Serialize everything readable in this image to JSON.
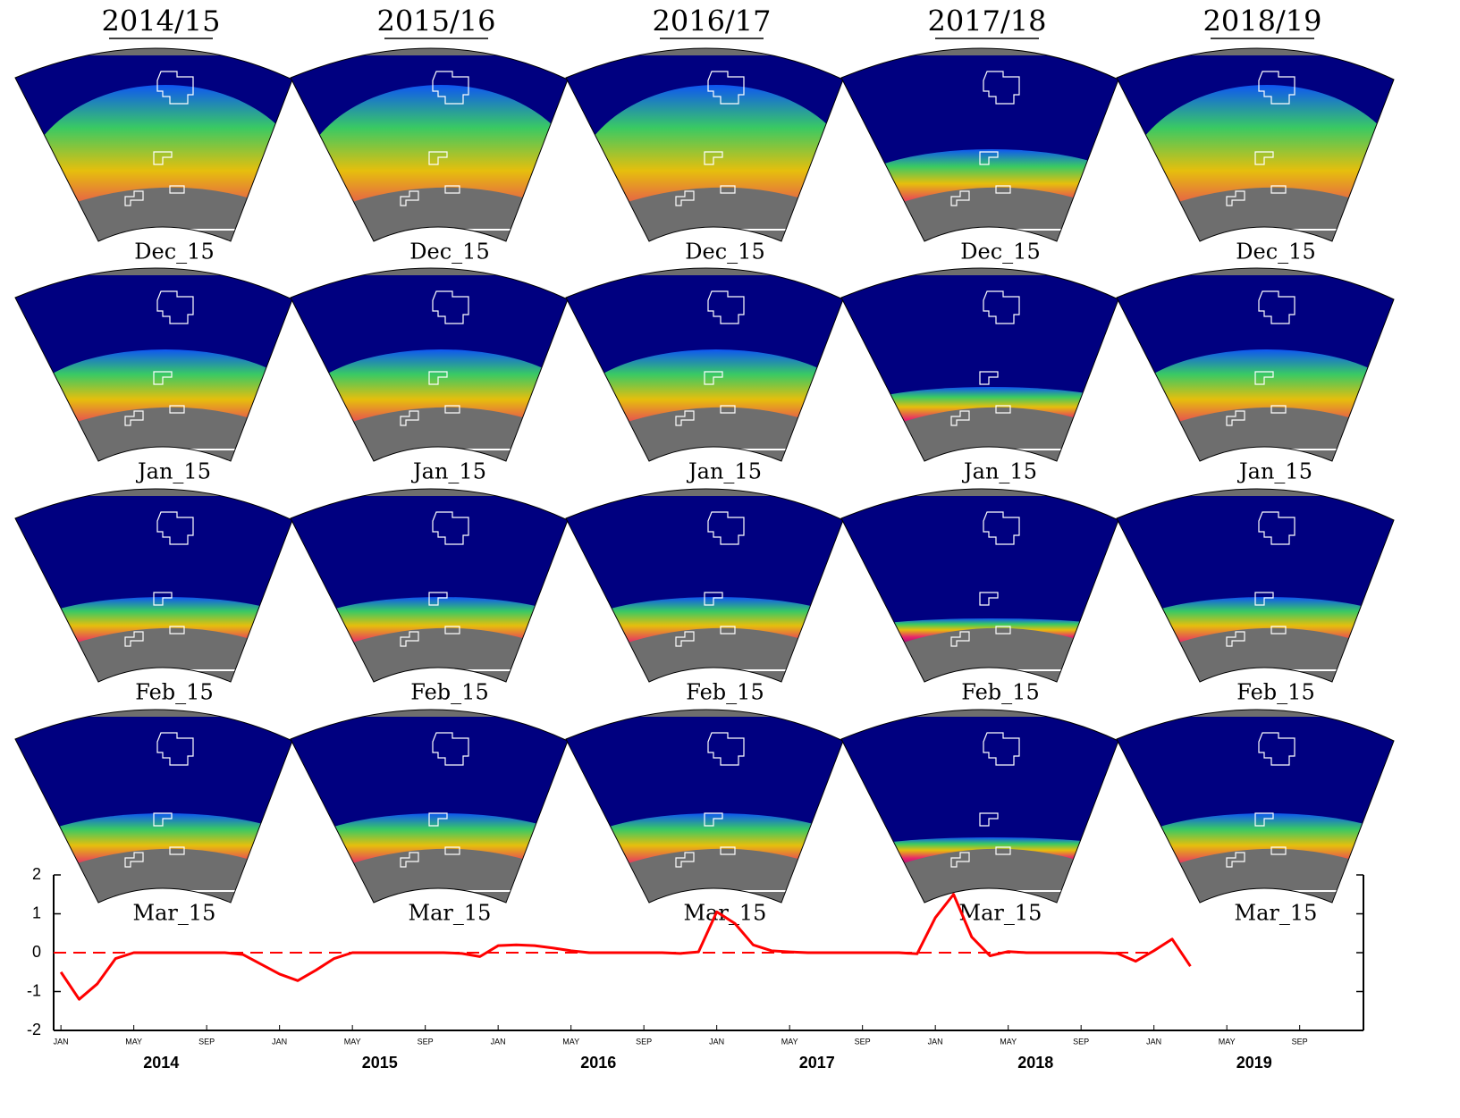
{
  "maps": {
    "column_titles": [
      "2014/15",
      "2015/16",
      "2016/17",
      "2017/18",
      "2018/19"
    ],
    "row_labels": [
      "Dec_15",
      "Jan_15",
      "Feb_15",
      "Mar_15"
    ]
  },
  "chart_data": {
    "type": "line",
    "x": [
      0,
      1,
      2,
      3,
      4,
      5,
      6,
      7,
      8,
      9,
      10,
      11,
      12,
      13,
      14,
      15,
      16,
      17,
      18,
      19,
      20,
      21,
      22,
      23,
      24,
      25,
      26,
      27,
      28,
      29,
      30,
      31,
      32,
      33,
      34,
      35,
      36,
      37,
      38,
      39,
      40,
      41,
      42,
      43,
      44,
      45,
      46,
      47,
      48,
      49,
      50,
      51,
      52,
      53,
      54,
      55,
      56,
      57,
      58,
      59,
      60,
      61,
      62
    ],
    "series": [
      {
        "color": "#ff0000",
        "values": [
          -0.5,
          -1.2,
          -0.8,
          -0.15,
          0,
          0,
          0,
          0,
          0,
          0,
          -0.05,
          -0.3,
          -0.55,
          -0.72,
          -0.45,
          -0.15,
          0,
          0,
          0,
          0,
          0,
          0,
          -0.02,
          -0.1,
          0.18,
          0.2,
          0.18,
          0.12,
          0.05,
          0,
          0,
          0,
          0,
          0,
          -0.02,
          0.02,
          1.05,
          0.75,
          0.2,
          0.05,
          0.02,
          0,
          0,
          0,
          0,
          0,
          0,
          -0.03,
          0.9,
          1.5,
          0.4,
          -0.08,
          0.03,
          0,
          0,
          0,
          0,
          0,
          -0.02,
          -0.22,
          0.05,
          0.35,
          -0.35
        ]
      }
    ],
    "hline": 0,
    "xlim": [
      -0.4,
      71.5
    ],
    "ylim": [
      -2,
      2
    ],
    "yticks": [
      -2,
      -1,
      0,
      1,
      2
    ],
    "xticks": [
      {
        "value": 0,
        "label": "JAN"
      },
      {
        "value": 4,
        "label": "MAY"
      },
      {
        "value": 8,
        "label": "SEP"
      },
      {
        "value": 12,
        "label": "JAN"
      },
      {
        "value": 16,
        "label": "MAY"
      },
      {
        "value": 20,
        "label": "SEP"
      },
      {
        "value": 24,
        "label": "JAN"
      },
      {
        "value": 28,
        "label": "MAY"
      },
      {
        "value": 32,
        "label": "SEP"
      },
      {
        "value": 36,
        "label": "JAN"
      },
      {
        "value": 40,
        "label": "MAY"
      },
      {
        "value": 44,
        "label": "SEP"
      },
      {
        "value": 48,
        "label": "JAN"
      },
      {
        "value": 52,
        "label": "MAY"
      },
      {
        "value": 56,
        "label": "SEP"
      },
      {
        "value": 60,
        "label": "JAN"
      },
      {
        "value": 64,
        "label": "MAY"
      },
      {
        "value": 68,
        "label": "SEP"
      }
    ],
    "year_labels": [
      "2014",
      "2015",
      "2016",
      "2017",
      "2018",
      "2019"
    ]
  }
}
